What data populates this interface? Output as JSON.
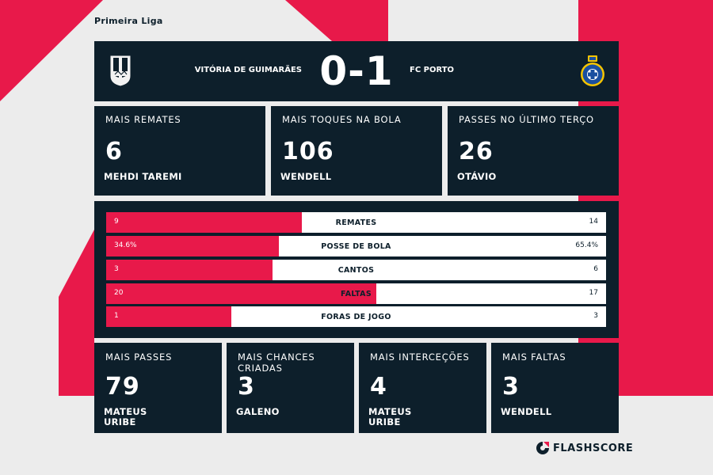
{
  "league": "Primeira Liga",
  "colors": {
    "accent": "#e8194a",
    "panel": "#0d1f2b",
    "background": "#ececec"
  },
  "match": {
    "home": "VITÓRIA DE GUIMARÃES",
    "away": "FC PORTO",
    "score": "0-1",
    "home_crest": "vitoria-guimaraes-crest",
    "away_crest": "fc-porto-crest"
  },
  "top_cards": [
    {
      "title": "MAIS REMATES",
      "value": "6",
      "player": "MEHDI TAREMI"
    },
    {
      "title": "MAIS TOQUES NA BOLA",
      "value": "106",
      "player": "WENDELL"
    },
    {
      "title": "PASSES NO ÚLTIMO TERÇO",
      "value": "26",
      "player": "OTÁVIO"
    }
  ],
  "stats": [
    {
      "label": "REMATES",
      "home": "9",
      "away": "14",
      "home_share": 0.391
    },
    {
      "label": "POSSE DE BOLA",
      "home": "34.6%",
      "away": "65.4%",
      "home_share": 0.346
    },
    {
      "label": "CANTOS",
      "home": "3",
      "away": "6",
      "home_share": 0.333
    },
    {
      "label": "FALTAS",
      "home": "20",
      "away": "17",
      "home_share": 0.541
    },
    {
      "label": "FORAS DE JOGO",
      "home": "1",
      "away": "3",
      "home_share": 0.25
    }
  ],
  "bottom_cards": [
    {
      "title": "MAIS PASSES",
      "value": "79",
      "player": "MATEUS URIBE"
    },
    {
      "title": "MAIS CHANCES CRIADAS",
      "value": "3",
      "player": "GALENO"
    },
    {
      "title": "MAIS INTERCEÇÕES",
      "value": "4",
      "player": "MATEUS URIBE"
    },
    {
      "title": "MAIS FALTAS",
      "value": "3",
      "player": "WENDELL"
    }
  ],
  "brand": {
    "name": "FLASHSCORE",
    "icon": "flashscore-logo-icon"
  }
}
